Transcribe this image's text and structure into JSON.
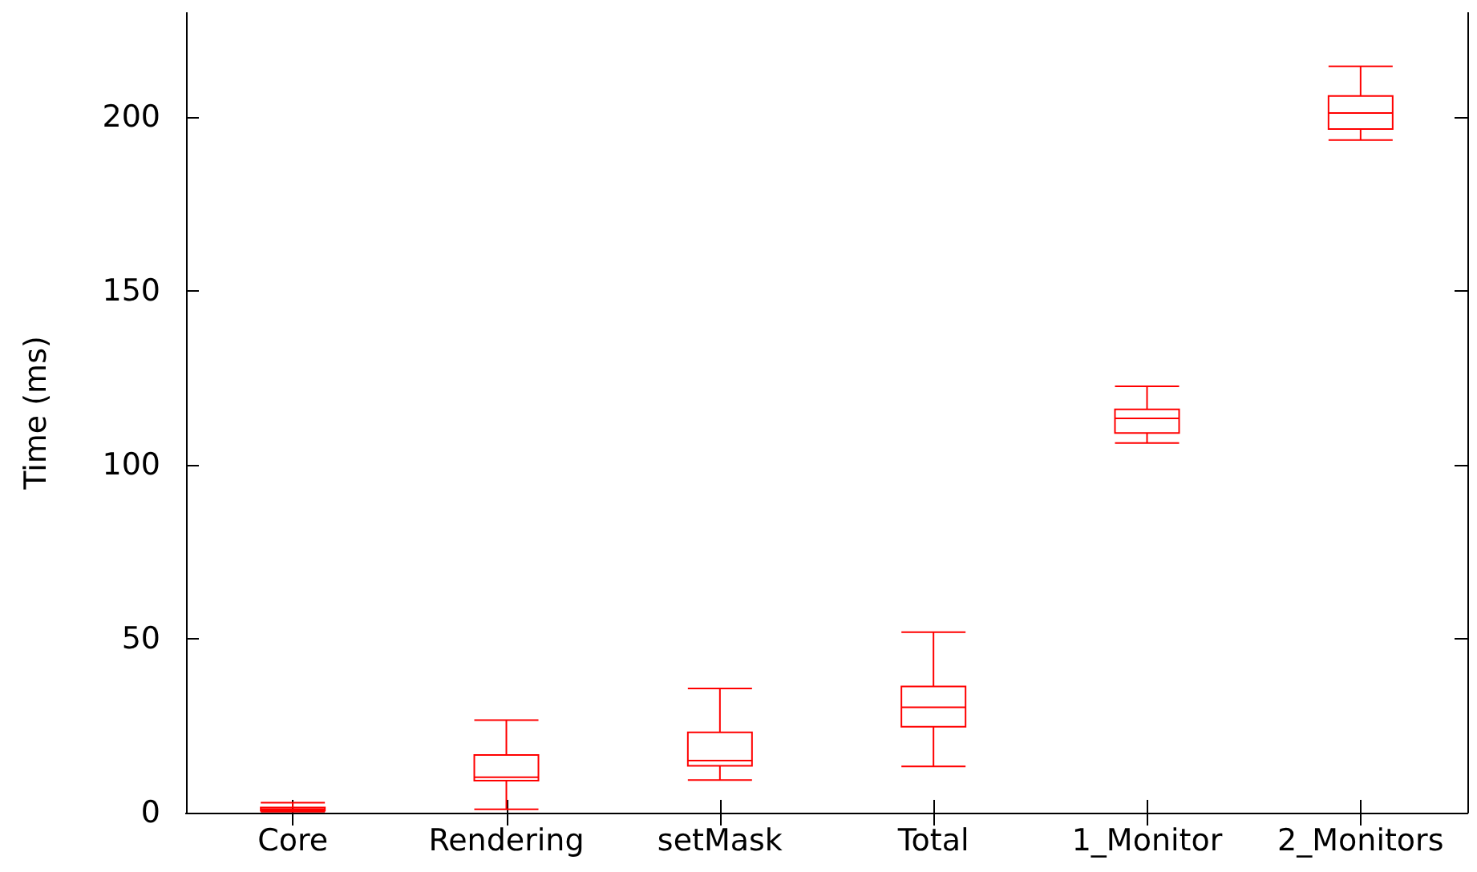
{
  "chart_data": {
    "type": "box",
    "ylabel": "Time (ms)",
    "categories": [
      "Core",
      "Rendering",
      "setMask",
      "Total",
      "1_Monitor",
      "2_Monitors"
    ],
    "series": [
      {
        "color": "#ff0000",
        "boxes": [
          {
            "low": 0.3,
            "q1": 0.6,
            "median": 1,
            "q3": 1.5,
            "high": 2.9
          },
          {
            "low": 1,
            "q1": 9.2,
            "median": 10.2,
            "q3": 16.6,
            "high": 26.6
          },
          {
            "low": 9.4,
            "q1": 13.5,
            "median": 15,
            "q3": 23.1,
            "high": 35.7
          },
          {
            "low": 13.3,
            "q1": 24.7,
            "median": 30.3,
            "q3": 36.3,
            "high": 51.9
          },
          {
            "low": 106.3,
            "q1": 109.2,
            "median": 113.4,
            "q3": 116,
            "high": 122.6
          },
          {
            "low": 193.4,
            "q1": 196.6,
            "median": 201.2,
            "q3": 206.1,
            "high": 214.6
          }
        ]
      }
    ],
    "ylim": [
      0,
      230
    ],
    "yticks": [
      0,
      50,
      100,
      150,
      200
    ]
  }
}
